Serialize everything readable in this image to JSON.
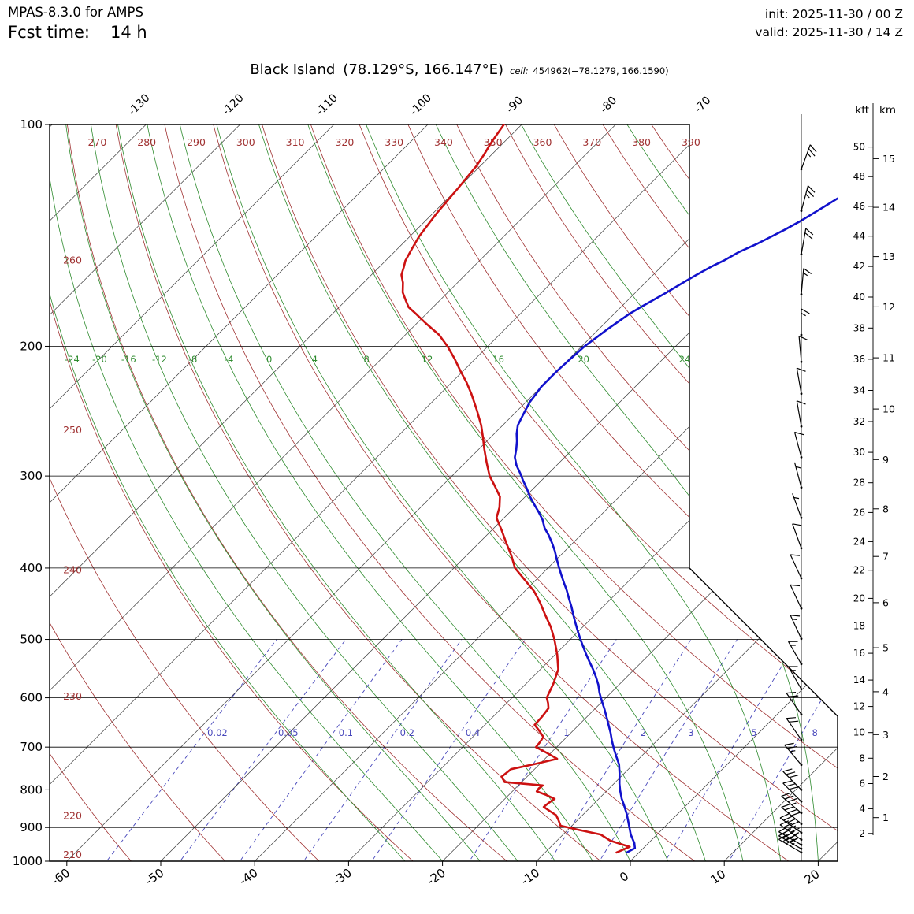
{
  "header": {
    "model": "MPAS-8.3.0 for AMPS",
    "fcst_label": "Fcst time:",
    "fcst_value": "14 h",
    "init": "init: 2025-11-30 / 00 Z",
    "valid": "valid: 2025-11-30 / 14 Z"
  },
  "title": {
    "station": "Black Island",
    "coords": "(78.129°S, 166.147°E)",
    "cell_label": "cell:",
    "cell_value": "454962(−78.1279, 166.1590)"
  },
  "chart_data": {
    "type": "skewt-logp",
    "pressure_ticks": [
      100,
      200,
      300,
      400,
      500,
      600,
      700,
      800,
      900,
      1000
    ],
    "temperature_ticks": [
      -60,
      -50,
      -40,
      -30,
      -20,
      -10,
      0,
      10,
      20
    ],
    "top_isotherm_labels": [
      -130,
      -120,
      -110,
      -100,
      -90,
      -80,
      -70
    ],
    "dry_adiabat_values": [
      210,
      220,
      230,
      240,
      250,
      260,
      270,
      280,
      290,
      300,
      310,
      320,
      330,
      340,
      350,
      360,
      370,
      380,
      390
    ],
    "moist_adiabat_values": [
      -24,
      -20,
      -16,
      -12,
      -8,
      -4,
      0,
      4,
      8,
      12,
      16,
      20,
      24,
      28,
      32,
      36
    ],
    "moist_adiabat_labeled": [
      -24,
      -20,
      -16,
      -12,
      -8,
      -4,
      0,
      4,
      8,
      12,
      16,
      20,
      24
    ],
    "mixing_ratio_values": [
      0.02,
      0.05,
      0.1,
      0.2,
      0.4,
      1,
      2,
      3,
      5,
      8
    ],
    "altitude_scales": {
      "kft_label": "kft",
      "km_label": "km",
      "kft_ticks": [
        2,
        4,
        6,
        8,
        10,
        12,
        14,
        16,
        18,
        20,
        22,
        24,
        26,
        28,
        30,
        32,
        34,
        36,
        38,
        40,
        42,
        44,
        46,
        48,
        50
      ],
      "km_ticks": [
        1,
        2,
        3,
        4,
        5,
        6,
        7,
        8,
        9,
        10,
        11,
        12,
        13,
        14,
        15
      ]
    },
    "temperature_profile": {
      "color": "#1111cc",
      "points": [
        [
          973,
          -1.3
        ],
        [
          960,
          -0.9
        ],
        [
          945,
          -1.5
        ],
        [
          920,
          -2.8
        ],
        [
          902,
          -3.6
        ],
        [
          880,
          -4.6
        ],
        [
          861,
          -5.5
        ],
        [
          840,
          -6.6
        ],
        [
          822,
          -7.6
        ],
        [
          802,
          -8.6
        ],
        [
          785,
          -9.4
        ],
        [
          760,
          -10.5
        ],
        [
          739,
          -11.5
        ],
        [
          720,
          -12.7
        ],
        [
          704,
          -13.7
        ],
        [
          686,
          -14.8
        ],
        [
          669,
          -15.8
        ],
        [
          652,
          -16.9
        ],
        [
          637,
          -17.9
        ],
        [
          621,
          -19.0
        ],
        [
          606,
          -20.1
        ],
        [
          591,
          -21.2
        ],
        [
          576,
          -22.2
        ],
        [
          562,
          -23.3
        ],
        [
          549,
          -24.4
        ],
        [
          536,
          -25.6
        ],
        [
          523,
          -26.8
        ],
        [
          510,
          -28.0
        ],
        [
          498,
          -29.1
        ],
        [
          486,
          -30.2
        ],
        [
          474,
          -31.3
        ],
        [
          462,
          -32.4
        ],
        [
          451,
          -33.4
        ],
        [
          440,
          -34.5
        ],
        [
          429,
          -35.6
        ],
        [
          419,
          -36.7
        ],
        [
          409,
          -37.8
        ],
        [
          399,
          -38.9
        ],
        [
          389,
          -40.0
        ],
        [
          379,
          -41.1
        ],
        [
          370,
          -42.2
        ],
        [
          361,
          -43.4
        ],
        [
          353,
          -44.6
        ],
        [
          344,
          -45.7
        ],
        [
          336,
          -46.9
        ],
        [
          328,
          -48.2
        ],
        [
          320,
          -49.5
        ],
        [
          312,
          -50.7
        ],
        [
          304,
          -52.0
        ],
        [
          297,
          -53.1
        ],
        [
          290,
          -54.3
        ],
        [
          283,
          -55.3
        ],
        [
          276,
          -56.0
        ],
        [
          269,
          -56.8
        ],
        [
          263,
          -57.6
        ],
        [
          256,
          -58.4
        ],
        [
          250,
          -58.8
        ],
        [
          244,
          -59.2
        ],
        [
          238,
          -59.6
        ],
        [
          232,
          -59.8
        ],
        [
          227,
          -60.0
        ],
        [
          221,
          -60.0
        ],
        [
          216,
          -60.0
        ],
        [
          210,
          -59.9
        ],
        [
          205,
          -59.8
        ],
        [
          200,
          -59.7
        ],
        [
          195,
          -59.4
        ],
        [
          190,
          -59.1
        ],
        [
          186,
          -58.8
        ],
        [
          181,
          -58.4
        ],
        [
          177,
          -57.9
        ],
        [
          173,
          -57.3
        ],
        [
          169,
          -56.7
        ],
        [
          164,
          -56.0
        ],
        [
          160,
          -55.4
        ],
        [
          156,
          -54.7
        ],
        [
          153,
          -54.0
        ],
        [
          149,
          -53.3
        ],
        [
          145,
          -52.2
        ],
        [
          142,
          -51.5
        ],
        [
          139,
          -50.8
        ],
        [
          135,
          -50.0
        ],
        [
          132,
          -49.5
        ],
        [
          129,
          -49.0
        ],
        [
          126,
          -48.5
        ]
      ]
    },
    "dewpoint_profile": {
      "color": "#cc1111",
      "points": [
        [
          973,
          -2.4
        ],
        [
          956,
          -1.6
        ],
        [
          938,
          -4.3
        ],
        [
          920,
          -6.0
        ],
        [
          906,
          -9.0
        ],
        [
          895,
          -11.2
        ],
        [
          880,
          -12.0
        ],
        [
          866,
          -12.8
        ],
        [
          855,
          -13.9
        ],
        [
          844,
          -15.0
        ],
        [
          833,
          -14.9
        ],
        [
          823,
          -14.7
        ],
        [
          813,
          -16.0
        ],
        [
          804,
          -17.4
        ],
        [
          796,
          -17.5
        ],
        [
          789,
          -17.4
        ],
        [
          781,
          -21.8
        ],
        [
          768,
          -22.7
        ],
        [
          759,
          -22.6
        ],
        [
          750,
          -22.5
        ],
        [
          738,
          -20.5
        ],
        [
          726,
          -18.7
        ],
        [
          713,
          -20.4
        ],
        [
          700,
          -22.2
        ],
        [
          689,
          -22.3
        ],
        [
          678,
          -22.5
        ],
        [
          665,
          -23.6
        ],
        [
          653,
          -24.7
        ],
        [
          636,
          -24.8
        ],
        [
          620,
          -25.0
        ],
        [
          610,
          -25.6
        ],
        [
          600,
          -26.3
        ],
        [
          574,
          -27.1
        ],
        [
          549,
          -28.1
        ],
        [
          524,
          -29.8
        ],
        [
          500,
          -31.7
        ],
        [
          481,
          -33.4
        ],
        [
          463,
          -35.3
        ],
        [
          446,
          -37.1
        ],
        [
          430,
          -39.0
        ],
        [
          415,
          -41.2
        ],
        [
          400,
          -43.5
        ],
        [
          384,
          -45.3
        ],
        [
          369,
          -47.2
        ],
        [
          355,
          -49.0
        ],
        [
          342,
          -50.8
        ],
        [
          331,
          -51.6
        ],
        [
          320,
          -52.7
        ],
        [
          310,
          -54.3
        ],
        [
          300,
          -56.0
        ],
        [
          288,
          -57.7
        ],
        [
          276,
          -59.4
        ],
        [
          266,
          -60.8
        ],
        [
          256,
          -62.3
        ],
        [
          244,
          -64.4
        ],
        [
          232,
          -66.7
        ],
        [
          224,
          -68.4
        ],
        [
          216,
          -70.3
        ],
        [
          208,
          -72.2
        ],
        [
          200,
          -74.3
        ],
        [
          193,
          -76.4
        ],
        [
          186,
          -79.1
        ],
        [
          181,
          -81.0
        ],
        [
          177,
          -82.6
        ],
        [
          173,
          -83.7
        ],
        [
          169,
          -84.8
        ],
        [
          164,
          -85.8
        ],
        [
          160,
          -86.8
        ],
        [
          156,
          -87.4
        ],
        [
          153,
          -87.9
        ],
        [
          147,
          -88.5
        ],
        [
          142,
          -89.0
        ],
        [
          137,
          -89.3
        ],
        [
          132,
          -89.6
        ],
        [
          127,
          -89.8
        ],
        [
          122,
          -90.0
        ],
        [
          118,
          -90.2
        ],
        [
          114,
          -90.4
        ],
        [
          110,
          -90.8
        ],
        [
          106,
          -91.3
        ],
        [
          103,
          -91.6
        ],
        [
          100,
          -91.9
        ]
      ]
    },
    "wind_barbs": [
      {
        "p": 115,
        "kt": 25,
        "dir": 20
      },
      {
        "p": 131,
        "kt": 25,
        "dir": 15
      },
      {
        "p": 150,
        "kt": 20,
        "dir": 10
      },
      {
        "p": 170,
        "kt": 15,
        "dir": 5
      },
      {
        "p": 193,
        "kt": 15,
        "dir": 0
      },
      {
        "p": 210,
        "kt": 10,
        "dir": 355
      },
      {
        "p": 232,
        "kt": 10,
        "dir": 350
      },
      {
        "p": 257,
        "kt": 10,
        "dir": 350
      },
      {
        "p": 283,
        "kt": 10,
        "dir": 345
      },
      {
        "p": 311,
        "kt": 5,
        "dir": 345
      },
      {
        "p": 342,
        "kt": 5,
        "dir": 340
      },
      {
        "p": 376,
        "kt": 10,
        "dir": 340
      },
      {
        "p": 413,
        "kt": 10,
        "dir": 335
      },
      {
        "p": 454,
        "kt": 10,
        "dir": 335
      },
      {
        "p": 499,
        "kt": 15,
        "dir": 335
      },
      {
        "p": 540,
        "kt": 15,
        "dir": 330
      },
      {
        "p": 584,
        "kt": 15,
        "dir": 330
      },
      {
        "p": 632,
        "kt": 20,
        "dir": 325
      },
      {
        "p": 684,
        "kt": 20,
        "dir": 325
      },
      {
        "p": 740,
        "kt": 25,
        "dir": 320
      },
      {
        "p": 800,
        "kt": 30,
        "dir": 315
      },
      {
        "p": 830,
        "kt": 30,
        "dir": 315
      },
      {
        "p": 860,
        "kt": 35,
        "dir": 310
      },
      {
        "p": 890,
        "kt": 40,
        "dir": 310
      },
      {
        "p": 915,
        "kt": 40,
        "dir": 305
      },
      {
        "p": 935,
        "kt": 45,
        "dir": 305
      },
      {
        "p": 950,
        "kt": 45,
        "dir": 300
      },
      {
        "p": 962,
        "kt": 40,
        "dir": 300
      },
      {
        "p": 973,
        "kt": 35,
        "dir": 300
      }
    ],
    "colors": {
      "isotherm": "#3a3a3a",
      "dry_adiabat": "#a03232",
      "moist_adiabat": "#2e8b2e",
      "mixing": "#4747bb",
      "border": "#000000",
      "barb": "#000000"
    }
  }
}
